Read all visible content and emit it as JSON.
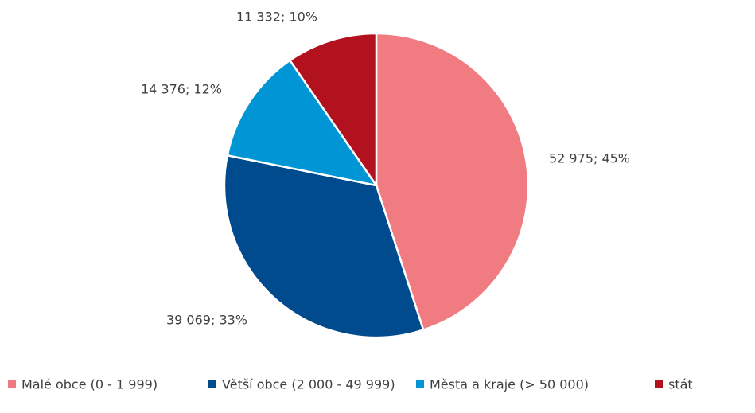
{
  "chart_data": {
    "type": "pie",
    "categories": [
      "Malé obce (0 - 1 999)",
      "Větší obce (2 000 - 49 999)",
      "Města a kraje (> 50 000)",
      "stát"
    ],
    "values": [
      52975,
      39069,
      14376,
      11332
    ],
    "value_labels": [
      "52 975; 45%",
      "39 069; 33%",
      "14 376; 12%",
      "11 332; 10%"
    ],
    "colors": [
      "#f07b80",
      "#004b8d",
      "#0096d6",
      "#b2121e"
    ],
    "legend": "bottom"
  }
}
